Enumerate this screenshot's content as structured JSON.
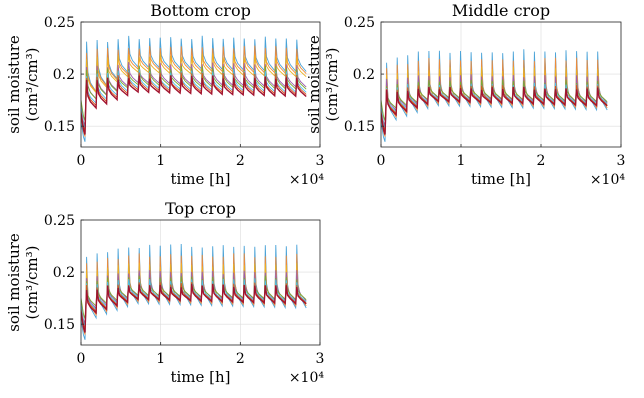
{
  "chart_data": [
    {
      "type": "line",
      "title": "Bottom crop",
      "xlabel": "time [h]",
      "ylabel_line1": "soil moisture",
      "ylabel_line2": "(cm³/cm³)",
      "x_exponent": "×10⁴",
      "xlim": [
        0,
        3
      ],
      "ylim": [
        0.13,
        0.25
      ],
      "xticks": [
        0,
        1,
        2,
        3
      ],
      "yticks": [
        0.15,
        0.2,
        0.25
      ],
      "grid": true,
      "cycles": 21,
      "t_end": 2.85,
      "series": [
        {
          "color": "#4aa3d8",
          "peak": 0.235,
          "floor": 0.205,
          "start": 0.135
        },
        {
          "color": "#ee8a3a",
          "peak": 0.226,
          "floor": 0.203,
          "start": 0.14
        },
        {
          "color": "#edb120",
          "peak": 0.218,
          "floor": 0.2,
          "start": 0.145
        },
        {
          "color": "#9c5bb0",
          "peak": 0.21,
          "floor": 0.19,
          "start": 0.15
        },
        {
          "color": "#77ac30",
          "peak": 0.206,
          "floor": 0.188,
          "start": 0.155
        },
        {
          "color": "#4dbeee",
          "peak": 0.203,
          "floor": 0.185,
          "start": 0.148
        },
        {
          "color": "#d95319",
          "peak": 0.2,
          "floor": 0.183,
          "start": 0.145
        },
        {
          "color": "#a2142f",
          "peak": 0.197,
          "floor": 0.181,
          "start": 0.142
        }
      ]
    },
    {
      "type": "line",
      "title": "Middle crop",
      "xlabel": "time [h]",
      "ylabel_line1": "soil moisture",
      "ylabel_line2": "(cm³/cm³)",
      "x_exponent": "×10⁴",
      "xlim": [
        0,
        3
      ],
      "ylim": [
        0.13,
        0.25
      ],
      "xticks": [
        0,
        1,
        2,
        3
      ],
      "yticks": [
        0.15,
        0.2,
        0.25
      ],
      "grid": true,
      "cycles": 21,
      "t_end": 2.85,
      "series": [
        {
          "color": "#4aa3d8",
          "peak": 0.222,
          "floor": 0.168,
          "start": 0.135
        },
        {
          "color": "#ee8a3a",
          "peak": 0.214,
          "floor": 0.17,
          "start": 0.14
        },
        {
          "color": "#edb120",
          "peak": 0.205,
          "floor": 0.172,
          "start": 0.145
        },
        {
          "color": "#9c5bb0",
          "peak": 0.198,
          "floor": 0.175,
          "start": 0.15
        },
        {
          "color": "#77ac30",
          "peak": 0.193,
          "floor": 0.176,
          "start": 0.155
        },
        {
          "color": "#4dbeee",
          "peak": 0.19,
          "floor": 0.174,
          "start": 0.148
        },
        {
          "color": "#d95319",
          "peak": 0.188,
          "floor": 0.173,
          "start": 0.145
        },
        {
          "color": "#a2142f",
          "peak": 0.186,
          "floor": 0.172,
          "start": 0.142
        }
      ]
    },
    {
      "type": "line",
      "title": "Top crop",
      "xlabel": "time [h]",
      "ylabel_line1": "soil moisture",
      "ylabel_line2": "(cm³/cm³)",
      "x_exponent": "×10⁴",
      "xlim": [
        0,
        3
      ],
      "ylim": [
        0.13,
        0.25
      ],
      "xticks": [
        0,
        1,
        2,
        3
      ],
      "yticks": [
        0.15,
        0.2,
        0.25
      ],
      "grid": true,
      "cycles": 21,
      "t_end": 2.85,
      "series": [
        {
          "color": "#4aa3d8",
          "peak": 0.225,
          "floor": 0.168,
          "start": 0.135
        },
        {
          "color": "#ee8a3a",
          "peak": 0.216,
          "floor": 0.17,
          "start": 0.14
        },
        {
          "color": "#edb120",
          "peak": 0.207,
          "floor": 0.172,
          "start": 0.145
        },
        {
          "color": "#9c5bb0",
          "peak": 0.2,
          "floor": 0.175,
          "start": 0.15
        },
        {
          "color": "#77ac30",
          "peak": 0.195,
          "floor": 0.176,
          "start": 0.155
        },
        {
          "color": "#4dbeee",
          "peak": 0.192,
          "floor": 0.174,
          "start": 0.148
        },
        {
          "color": "#d95319",
          "peak": 0.189,
          "floor": 0.173,
          "start": 0.145
        },
        {
          "color": "#a2142f",
          "peak": 0.187,
          "floor": 0.172,
          "start": 0.142
        }
      ]
    }
  ]
}
